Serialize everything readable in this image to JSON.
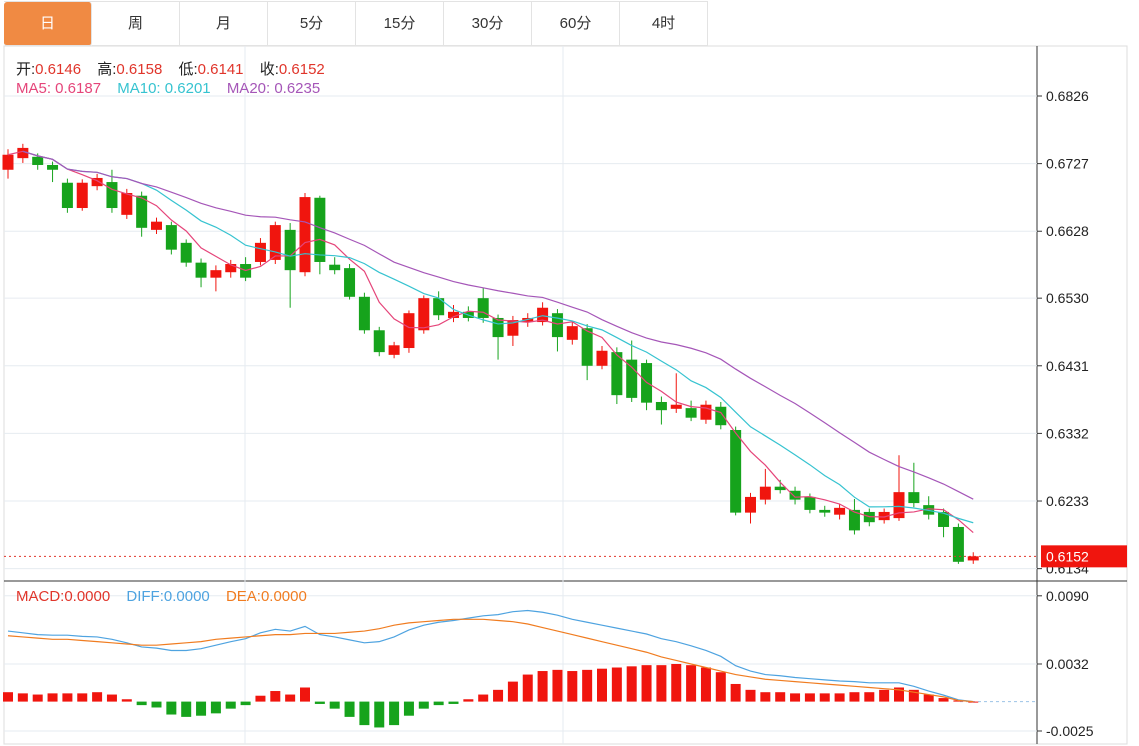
{
  "tabs": [
    {
      "label": "日",
      "active": true
    },
    {
      "label": "周"
    },
    {
      "label": "月"
    },
    {
      "label": "5分"
    },
    {
      "label": "15分"
    },
    {
      "label": "30分"
    },
    {
      "label": "60分"
    },
    {
      "label": "4时"
    }
  ],
  "ohlc_legend": {
    "open_label": "开:",
    "open": "0.6146",
    "high_label": "高:",
    "high": "0.6158",
    "low_label": "低:",
    "low": "0.6141",
    "close_label": "收:",
    "close": "0.6152"
  },
  "ma_legend": {
    "ma5": "MA5: 0.6187",
    "ma10": "MA10: 0.6201",
    "ma20": "MA20: 0.6235"
  },
  "macd_legend": {
    "macd": "MACD:0.0000",
    "diff": "DIFF:0.0000",
    "dea": "DEA:0.0000"
  },
  "colors": {
    "up": "#f0150e",
    "down": "#16a31c",
    "ma5": "#e5457a",
    "ma10": "#36c3d0",
    "ma20": "#a556b8",
    "diff": "#4ea3e0",
    "dea": "#f07c20",
    "active_tab": "#f08a43"
  },
  "chart_data": {
    "type": "candlestick",
    "price_axis": [
      "0.6826",
      "0.6727",
      "0.6628",
      "0.6530",
      "0.6431",
      "0.6332",
      "0.6233",
      "0.6134"
    ],
    "price_range": [
      0.611,
      0.69
    ],
    "current_price": "0.6152",
    "macd_axis": [
      "0.0090",
      "0.0032",
      "-0.0025"
    ],
    "macd_range": [
      -0.003,
      0.0105
    ],
    "candles": [
      [
        0.6718,
        0.674,
        0.6748,
        0.6705
      ],
      [
        0.6735,
        0.675,
        0.6756,
        0.6728
      ],
      [
        0.6737,
        0.6725,
        0.6742,
        0.6718
      ],
      [
        0.6725,
        0.6718,
        0.673,
        0.67
      ],
      [
        0.6699,
        0.6662,
        0.6705,
        0.6655
      ],
      [
        0.6662,
        0.6699,
        0.6704,
        0.6658
      ],
      [
        0.6694,
        0.6706,
        0.6712,
        0.6688
      ],
      [
        0.67,
        0.6662,
        0.6718,
        0.6655
      ],
      [
        0.6652,
        0.6684,
        0.669,
        0.6646
      ],
      [
        0.668,
        0.6633,
        0.6686,
        0.662
      ],
      [
        0.663,
        0.6642,
        0.6648,
        0.6624
      ],
      [
        0.6637,
        0.6601,
        0.6642,
        0.6594
      ],
      [
        0.6611,
        0.6582,
        0.6616,
        0.6576
      ],
      [
        0.6582,
        0.656,
        0.6588,
        0.6546
      ],
      [
        0.656,
        0.6571,
        0.6578,
        0.654
      ],
      [
        0.6568,
        0.658,
        0.6586,
        0.656
      ],
      [
        0.658,
        0.656,
        0.659,
        0.6555
      ],
      [
        0.6583,
        0.6611,
        0.6618,
        0.6578
      ],
      [
        0.6586,
        0.6637,
        0.6642,
        0.658
      ],
      [
        0.663,
        0.6571,
        0.664,
        0.6516
      ],
      [
        0.6568,
        0.6678,
        0.6684,
        0.6562
      ],
      [
        0.6677,
        0.6583,
        0.668,
        0.6565
      ],
      [
        0.6579,
        0.6571,
        0.659,
        0.6565
      ],
      [
        0.6574,
        0.6532,
        0.658,
        0.6528
      ],
      [
        0.6532,
        0.6483,
        0.6538,
        0.6478
      ],
      [
        0.6483,
        0.6451,
        0.6488,
        0.6445
      ],
      [
        0.6447,
        0.6461,
        0.6466,
        0.6442
      ],
      [
        0.6457,
        0.6508,
        0.6512,
        0.645
      ],
      [
        0.6483,
        0.653,
        0.6534,
        0.6478
      ],
      [
        0.653,
        0.6505,
        0.654,
        0.6498
      ],
      [
        0.6501,
        0.651,
        0.652,
        0.6495
      ],
      [
        0.651,
        0.6501,
        0.6518,
        0.6496
      ],
      [
        0.653,
        0.6501,
        0.6545,
        0.6494
      ],
      [
        0.6501,
        0.6473,
        0.6506,
        0.644
      ],
      [
        0.6475,
        0.6498,
        0.6504,
        0.646
      ],
      [
        0.6495,
        0.6501,
        0.6508,
        0.6488
      ],
      [
        0.6495,
        0.6516,
        0.6524,
        0.649
      ],
      [
        0.6508,
        0.6473,
        0.6514,
        0.6452
      ],
      [
        0.6469,
        0.6489,
        0.6496,
        0.6462
      ],
      [
        0.6486,
        0.6431,
        0.6492,
        0.641
      ],
      [
        0.6431,
        0.6453,
        0.646,
        0.6426
      ],
      [
        0.6451,
        0.6388,
        0.6458,
        0.6375
      ],
      [
        0.644,
        0.6384,
        0.6468,
        0.6378
      ],
      [
        0.6435,
        0.6377,
        0.644,
        0.6366
      ],
      [
        0.6378,
        0.6366,
        0.6386,
        0.6345
      ],
      [
        0.6368,
        0.6374,
        0.642,
        0.6362
      ],
      [
        0.6369,
        0.6355,
        0.638,
        0.635
      ],
      [
        0.6352,
        0.6374,
        0.638,
        0.6346
      ],
      [
        0.6371,
        0.6344,
        0.6378,
        0.6338
      ],
      [
        0.6337,
        0.6216,
        0.6342,
        0.6212
      ],
      [
        0.6216,
        0.6239,
        0.6245,
        0.62
      ],
      [
        0.6235,
        0.6254,
        0.628,
        0.6228
      ],
      [
        0.6254,
        0.6249,
        0.6264,
        0.6244
      ],
      [
        0.6248,
        0.6235,
        0.6254,
        0.6228
      ],
      [
        0.6239,
        0.622,
        0.6244,
        0.6215
      ],
      [
        0.622,
        0.6216,
        0.6226,
        0.621
      ],
      [
        0.6213,
        0.6223,
        0.6228,
        0.6206
      ],
      [
        0.622,
        0.619,
        0.6236,
        0.6184
      ],
      [
        0.6217,
        0.6202,
        0.6222,
        0.6196
      ],
      [
        0.6205,
        0.6217,
        0.6222,
        0.62
      ],
      [
        0.6208,
        0.6246,
        0.63,
        0.6204
      ],
      [
        0.6246,
        0.623,
        0.6289,
        0.6224
      ],
      [
        0.6227,
        0.6213,
        0.624,
        0.6206
      ],
      [
        0.6217,
        0.6195,
        0.6222,
        0.618
      ],
      [
        0.6195,
        0.6144,
        0.62,
        0.6141
      ],
      [
        0.6146,
        0.6152,
        0.6158,
        0.6141
      ]
    ],
    "macd_hist": [
      0.0008,
      0.0007,
      0.0006,
      0.0007,
      0.0007,
      0.0007,
      0.0008,
      0.0006,
      0.0002,
      -0.0003,
      -0.0005,
      -0.0011,
      -0.0013,
      -0.0012,
      -0.001,
      -0.0006,
      -0.0003,
      0.0005,
      0.0009,
      0.0006,
      0.0012,
      -0.0002,
      -0.0006,
      -0.0013,
      -0.002,
      -0.0022,
      -0.002,
      -0.0012,
      -0.0006,
      -0.0003,
      -0.0002,
      0.0002,
      0.0006,
      0.001,
      0.0017,
      0.0023,
      0.0026,
      0.0027,
      0.0026,
      0.0027,
      0.0028,
      0.0029,
      0.003,
      0.0031,
      0.0031,
      0.0032,
      0.0031,
      0.0029,
      0.0025,
      0.0015,
      0.001,
      0.0008,
      0.0008,
      0.0007,
      0.0007,
      0.0007,
      0.0007,
      0.0008,
      0.0008,
      0.001,
      0.0012,
      0.001,
      0.0006,
      0.0003,
      0.0001,
      0.0
    ],
    "dea": [
      0.0056,
      0.0055,
      0.0054,
      0.0053,
      0.0053,
      0.0052,
      0.0051,
      0.005,
      0.0049,
      0.0048,
      0.0048,
      0.0049,
      0.005,
      0.0051,
      0.0053,
      0.0054,
      0.0055,
      0.0056,
      0.0057,
      0.0057,
      0.0058,
      0.0058,
      0.0058,
      0.0059,
      0.006,
      0.0062,
      0.0065,
      0.0067,
      0.0068,
      0.0069,
      0.007,
      0.007,
      0.007,
      0.0069,
      0.0068,
      0.0066,
      0.0063,
      0.006,
      0.0057,
      0.0054,
      0.0051,
      0.0048,
      0.0045,
      0.0042,
      0.0038,
      0.0035,
      0.0032,
      0.0029,
      0.0026,
      0.0023,
      0.0021,
      0.0019,
      0.0018,
      0.0017,
      0.0016,
      0.0015,
      0.0014,
      0.0013,
      0.0012,
      0.0011,
      0.001,
      0.0008,
      0.0006,
      0.0004,
      0.0001,
      0.0
    ]
  }
}
